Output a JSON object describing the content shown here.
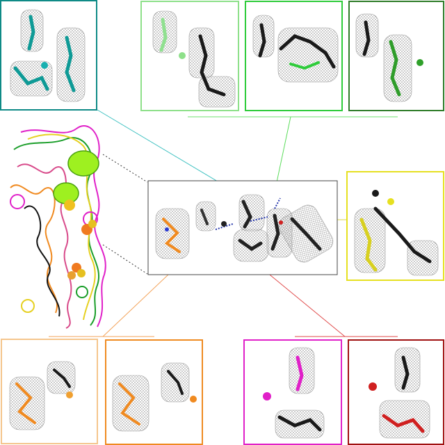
{
  "figure": {
    "description_text": "",
    "colors": {
      "teal": "#0e8a86",
      "light_green": "#8ee08a",
      "green": "#2ecc3a",
      "dark_green": "#2f7d2a",
      "yellow": "#e6e020",
      "light_orange": "#f5c58c",
      "orange": "#ef8a20",
      "magenta": "#e020c8",
      "dark_red": "#a01010",
      "center_box": "#444444",
      "mesh": "#9a9a9a"
    },
    "panels": [
      {
        "id": "teal",
        "label": ""
      },
      {
        "id": "light-green",
        "label": ""
      },
      {
        "id": "green",
        "label": ""
      },
      {
        "id": "dark-green",
        "label": ""
      },
      {
        "id": "yellow",
        "label": ""
      },
      {
        "id": "light-orange",
        "label": ""
      },
      {
        "id": "orange",
        "label": ""
      },
      {
        "id": "magenta",
        "label": ""
      },
      {
        "id": "dark-red",
        "label": ""
      }
    ],
    "icons": [
      "protein-ribbon-icon",
      "electron-density-mesh-icon",
      "iron-sulfur-cluster-icon"
    ]
  }
}
